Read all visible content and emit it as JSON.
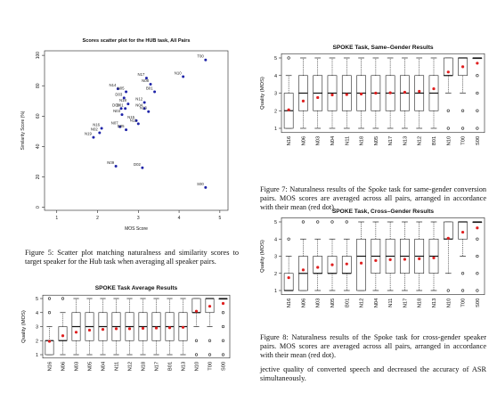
{
  "scatter": {
    "title": "Scores scatter plot for the HUB task, All Pairs",
    "xlabel": "MOS Score",
    "ylabel": "Similarity Score (%)",
    "xlim": [
      0.7,
      5.2
    ],
    "ylim": [
      -2,
      103
    ],
    "xticks": [
      1,
      2,
      3,
      4,
      5
    ],
    "yticks": [
      0,
      20,
      40,
      60,
      80,
      100
    ],
    "color": "#1f24a8",
    "points": [
      {
        "label": "T00",
        "x": 4.65,
        "y": 97
      },
      {
        "label": "N10",
        "x": 4.1,
        "y": 86
      },
      {
        "label": "N17",
        "x": 3.2,
        "y": 85
      },
      {
        "label": "N08",
        "x": 3.3,
        "y": 81
      },
      {
        "label": "B01",
        "x": 3.4,
        "y": 76
      },
      {
        "label": "N14",
        "x": 2.5,
        "y": 78
      },
      {
        "label": "N05",
        "x": 2.7,
        "y": 76
      },
      {
        "label": "D03",
        "x": 2.65,
        "y": 72
      },
      {
        "label": "N12",
        "x": 3.15,
        "y": 69
      },
      {
        "label": "N18",
        "x": 2.75,
        "y": 68
      },
      {
        "label": "D00",
        "x": 2.58,
        "y": 65
      },
      {
        "label": "D01",
        "x": 2.68,
        "y": 65
      },
      {
        "label": "N04",
        "x": 3.15,
        "y": 65
      },
      {
        "label": "N13",
        "x": 3.25,
        "y": 63
      },
      {
        "label": "N03",
        "x": 2.6,
        "y": 61
      },
      {
        "label": "N15",
        "x": 2.95,
        "y": 57
      },
      {
        "label": "N11",
        "x": 3.0,
        "y": 55
      },
      {
        "label": "N07",
        "x": 2.55,
        "y": 53
      },
      {
        "label": "D05",
        "x": 2.7,
        "y": 51
      },
      {
        "label": "N16",
        "x": 2.1,
        "y": 52
      },
      {
        "label": "N02",
        "x": 2.05,
        "y": 49
      },
      {
        "label": "N19",
        "x": 1.9,
        "y": 46
      },
      {
        "label": "N09",
        "x": 2.45,
        "y": 27
      },
      {
        "label": "D02",
        "x": 3.1,
        "y": 26
      },
      {
        "label": "S00",
        "x": 4.65,
        "y": 13
      }
    ]
  },
  "captions": {
    "fig5": "Figure 5: Scatter plot matching naturalness and similarity scores to target speaker for the Hub task when averaging all speaker pairs.",
    "fig7": "Figure 7: Naturalness results of the Spoke task for same-gender conversion pairs. MOS scores are averaged across all pairs, arranged in accordance with their mean (red dot).",
    "fig8": "Figure 8: Naturalness results of the Spoke task for cross-gender speaker pairs. MOS scores are averaged across all pairs, arranged in accordance with their mean (red dot)."
  },
  "body_text": "jective quality of converted speech and decreased the accuracy of ASR simultaneously.",
  "boxplots": {
    "same": {
      "title": "SPOKE Task, Same–Gender Results",
      "ylabel": "Quality (MOS)",
      "ylim": [
        1,
        5
      ],
      "yticks": [
        1,
        2,
        3,
        4,
        5
      ],
      "mean_color": "#e02020",
      "boxes": [
        {
          "label": "N16",
          "q1": 1,
          "med": 2,
          "q3": 3,
          "wlo": 1,
          "whi": 4,
          "mean": 2.05,
          "out_hi": [
            5
          ],
          "out_lo": []
        },
        {
          "label": "N06",
          "q1": 2,
          "med": 3,
          "q3": 4,
          "wlo": 1,
          "whi": 5,
          "mean": 2.55,
          "out_hi": [],
          "out_lo": []
        },
        {
          "label": "N03",
          "q1": 2,
          "med": 3,
          "q3": 4,
          "wlo": 1,
          "whi": 5,
          "mean": 2.75,
          "out_hi": [],
          "out_lo": []
        },
        {
          "label": "N04",
          "q1": 2,
          "med": 3,
          "q3": 4,
          "wlo": 1,
          "whi": 5,
          "mean": 2.9,
          "out_hi": [],
          "out_lo": []
        },
        {
          "label": "N11",
          "q1": 2,
          "med": 3,
          "q3": 4,
          "wlo": 1,
          "whi": 5,
          "mean": 2.92,
          "out_hi": [],
          "out_lo": []
        },
        {
          "label": "N18",
          "q1": 2,
          "med": 3,
          "q3": 4,
          "wlo": 1,
          "whi": 5,
          "mean": 2.95,
          "out_hi": [],
          "out_lo": []
        },
        {
          "label": "N05",
          "q1": 2,
          "med": 3,
          "q3": 4,
          "wlo": 1,
          "whi": 5,
          "mean": 3.0,
          "out_hi": [],
          "out_lo": []
        },
        {
          "label": "N17",
          "q1": 2,
          "med": 3,
          "q3": 4,
          "wlo": 1,
          "whi": 5,
          "mean": 3.02,
          "out_hi": [],
          "out_lo": []
        },
        {
          "label": "N13",
          "q1": 2,
          "med": 3,
          "q3": 4,
          "wlo": 1,
          "whi": 5,
          "mean": 3.05,
          "out_hi": [],
          "out_lo": []
        },
        {
          "label": "N12",
          "q1": 2,
          "med": 3,
          "q3": 4,
          "wlo": 1,
          "whi": 5,
          "mean": 3.1,
          "out_hi": [],
          "out_lo": []
        },
        {
          "label": "B01",
          "q1": 2,
          "med": 3,
          "q3": 4,
          "wlo": 1,
          "whi": 5,
          "mean": 3.25,
          "out_hi": [],
          "out_lo": []
        },
        {
          "label": "N10",
          "q1": 4,
          "med": 4,
          "q3": 5,
          "wlo": 3,
          "whi": 5,
          "mean": 4.2,
          "out_hi": [],
          "out_lo": [
            2,
            1
          ]
        },
        {
          "label": "T00",
          "q1": 4,
          "med": 5,
          "q3": 5,
          "wlo": 3,
          "whi": 5,
          "mean": 4.5,
          "out_hi": [],
          "out_lo": [
            2,
            1
          ]
        },
        {
          "label": "S00",
          "q1": 5,
          "med": 5,
          "q3": 5,
          "wlo": 5,
          "whi": 5,
          "mean": 4.7,
          "out_hi": [],
          "out_lo": [
            4,
            3,
            2,
            1
          ]
        }
      ]
    },
    "cross": {
      "title": "SPOKE Task, Cross–Gender Results",
      "ylabel": "Quality (MOS)",
      "ylim": [
        1,
        5
      ],
      "yticks": [
        1,
        2,
        3,
        4,
        5
      ],
      "mean_color": "#e02020",
      "boxes": [
        {
          "label": "N16",
          "q1": 1,
          "med": 1,
          "q3": 2,
          "wlo": 1,
          "whi": 3,
          "mean": 1.75,
          "out_hi": [
            4
          ],
          "out_lo": []
        },
        {
          "label": "N06",
          "q1": 1,
          "med": 2,
          "q3": 3,
          "wlo": 1,
          "whi": 4,
          "mean": 2.2,
          "out_hi": [
            5
          ],
          "out_lo": []
        },
        {
          "label": "N03",
          "q1": 2,
          "med": 2,
          "q3": 3,
          "wlo": 1,
          "whi": 4,
          "mean": 2.35,
          "out_hi": [
            5
          ],
          "out_lo": []
        },
        {
          "label": "N05",
          "q1": 2,
          "med": 2,
          "q3": 3,
          "wlo": 1,
          "whi": 4,
          "mean": 2.5,
          "out_hi": [
            5
          ],
          "out_lo": []
        },
        {
          "label": "B01",
          "q1": 2,
          "med": 2,
          "q3": 3,
          "wlo": 1,
          "whi": 4,
          "mean": 2.55,
          "out_hi": [
            5
          ],
          "out_lo": []
        },
        {
          "label": "N12",
          "q1": 1,
          "med": 3,
          "q3": 4,
          "wlo": 1,
          "whi": 5,
          "mean": 2.6,
          "out_hi": [],
          "out_lo": []
        },
        {
          "label": "N04",
          "q1": 2,
          "med": 3,
          "q3": 4,
          "wlo": 1,
          "whi": 5,
          "mean": 2.75,
          "out_hi": [],
          "out_lo": []
        },
        {
          "label": "N11",
          "q1": 2,
          "med": 3,
          "q3": 4,
          "wlo": 1,
          "whi": 5,
          "mean": 2.8,
          "out_hi": [],
          "out_lo": []
        },
        {
          "label": "N17",
          "q1": 2,
          "med": 3,
          "q3": 4,
          "wlo": 1,
          "whi": 5,
          "mean": 2.82,
          "out_hi": [],
          "out_lo": []
        },
        {
          "label": "N18",
          "q1": 2,
          "med": 3,
          "q3": 4,
          "wlo": 1,
          "whi": 5,
          "mean": 2.85,
          "out_hi": [],
          "out_lo": []
        },
        {
          "label": "N13",
          "q1": 2,
          "med": 3,
          "q3": 4,
          "wlo": 1,
          "whi": 5,
          "mean": 2.9,
          "out_hi": [],
          "out_lo": []
        },
        {
          "label": "N10",
          "q1": 4,
          "med": 4,
          "q3": 5,
          "wlo": 2,
          "whi": 5,
          "mean": 4.05,
          "out_hi": [],
          "out_lo": [
            1
          ]
        },
        {
          "label": "T00",
          "q1": 4,
          "med": 5,
          "q3": 5,
          "wlo": 3,
          "whi": 5,
          "mean": 4.4,
          "out_hi": [],
          "out_lo": [
            2,
            1
          ]
        },
        {
          "label": "S00",
          "q1": 5,
          "med": 5,
          "q3": 5,
          "wlo": 5,
          "whi": 5,
          "mean": 4.65,
          "out_hi": [],
          "out_lo": [
            4,
            3,
            2,
            1
          ]
        }
      ]
    },
    "average": {
      "title": "SPOKE Task Average Results",
      "ylabel": "Quality (MOS)",
      "ylim": [
        1,
        5
      ],
      "yticks": [
        1,
        2,
        3,
        4,
        5
      ],
      "mean_color": "#e02020",
      "boxes": [
        {
          "label": "N16",
          "q1": 1,
          "med": 2,
          "q3": 2,
          "wlo": 1,
          "whi": 3,
          "mean": 1.95,
          "out_hi": [
            4,
            5
          ],
          "out_lo": []
        },
        {
          "label": "N06",
          "q1": 2,
          "med": 2,
          "q3": 3,
          "wlo": 1,
          "whi": 4,
          "mean": 2.35,
          "out_hi": [
            5
          ],
          "out_lo": []
        },
        {
          "label": "N03",
          "q1": 2,
          "med": 3,
          "q3": 4,
          "wlo": 1,
          "whi": 5,
          "mean": 2.6,
          "out_hi": [],
          "out_lo": []
        },
        {
          "label": "N05",
          "q1": 2,
          "med": 3,
          "q3": 4,
          "wlo": 1,
          "whi": 5,
          "mean": 2.75,
          "out_hi": [],
          "out_lo": []
        },
        {
          "label": "N04",
          "q1": 2,
          "med": 3,
          "q3": 4,
          "wlo": 1,
          "whi": 5,
          "mean": 2.8,
          "out_hi": [],
          "out_lo": []
        },
        {
          "label": "N11",
          "q1": 2,
          "med": 3,
          "q3": 4,
          "wlo": 1,
          "whi": 5,
          "mean": 2.85,
          "out_hi": [],
          "out_lo": []
        },
        {
          "label": "N12",
          "q1": 2,
          "med": 3,
          "q3": 4,
          "wlo": 1,
          "whi": 5,
          "mean": 2.85,
          "out_hi": [],
          "out_lo": []
        },
        {
          "label": "N18",
          "q1": 2,
          "med": 3,
          "q3": 4,
          "wlo": 1,
          "whi": 5,
          "mean": 2.88,
          "out_hi": [],
          "out_lo": []
        },
        {
          "label": "N17",
          "q1": 2,
          "med": 3,
          "q3": 4,
          "wlo": 1,
          "whi": 5,
          "mean": 2.9,
          "out_hi": [],
          "out_lo": []
        },
        {
          "label": "B01",
          "q1": 2,
          "med": 3,
          "q3": 4,
          "wlo": 1,
          "whi": 5,
          "mean": 2.92,
          "out_hi": [],
          "out_lo": []
        },
        {
          "label": "N13",
          "q1": 2,
          "med": 3,
          "q3": 4,
          "wlo": 1,
          "whi": 5,
          "mean": 2.95,
          "out_hi": [],
          "out_lo": []
        },
        {
          "label": "N10",
          "q1": 4,
          "med": 4,
          "q3": 5,
          "wlo": 3,
          "whi": 5,
          "mean": 4.1,
          "out_hi": [],
          "out_lo": [
            2,
            1
          ]
        },
        {
          "label": "T00",
          "q1": 4,
          "med": 5,
          "q3": 5,
          "wlo": 3,
          "whi": 5,
          "mean": 4.45,
          "out_hi": [],
          "out_lo": [
            2,
            1
          ]
        },
        {
          "label": "S00",
          "q1": 5,
          "med": 5,
          "q3": 5,
          "wlo": 5,
          "whi": 5,
          "mean": 4.65,
          "out_hi": [],
          "out_lo": [
            4,
            3,
            2,
            1
          ]
        }
      ]
    }
  }
}
